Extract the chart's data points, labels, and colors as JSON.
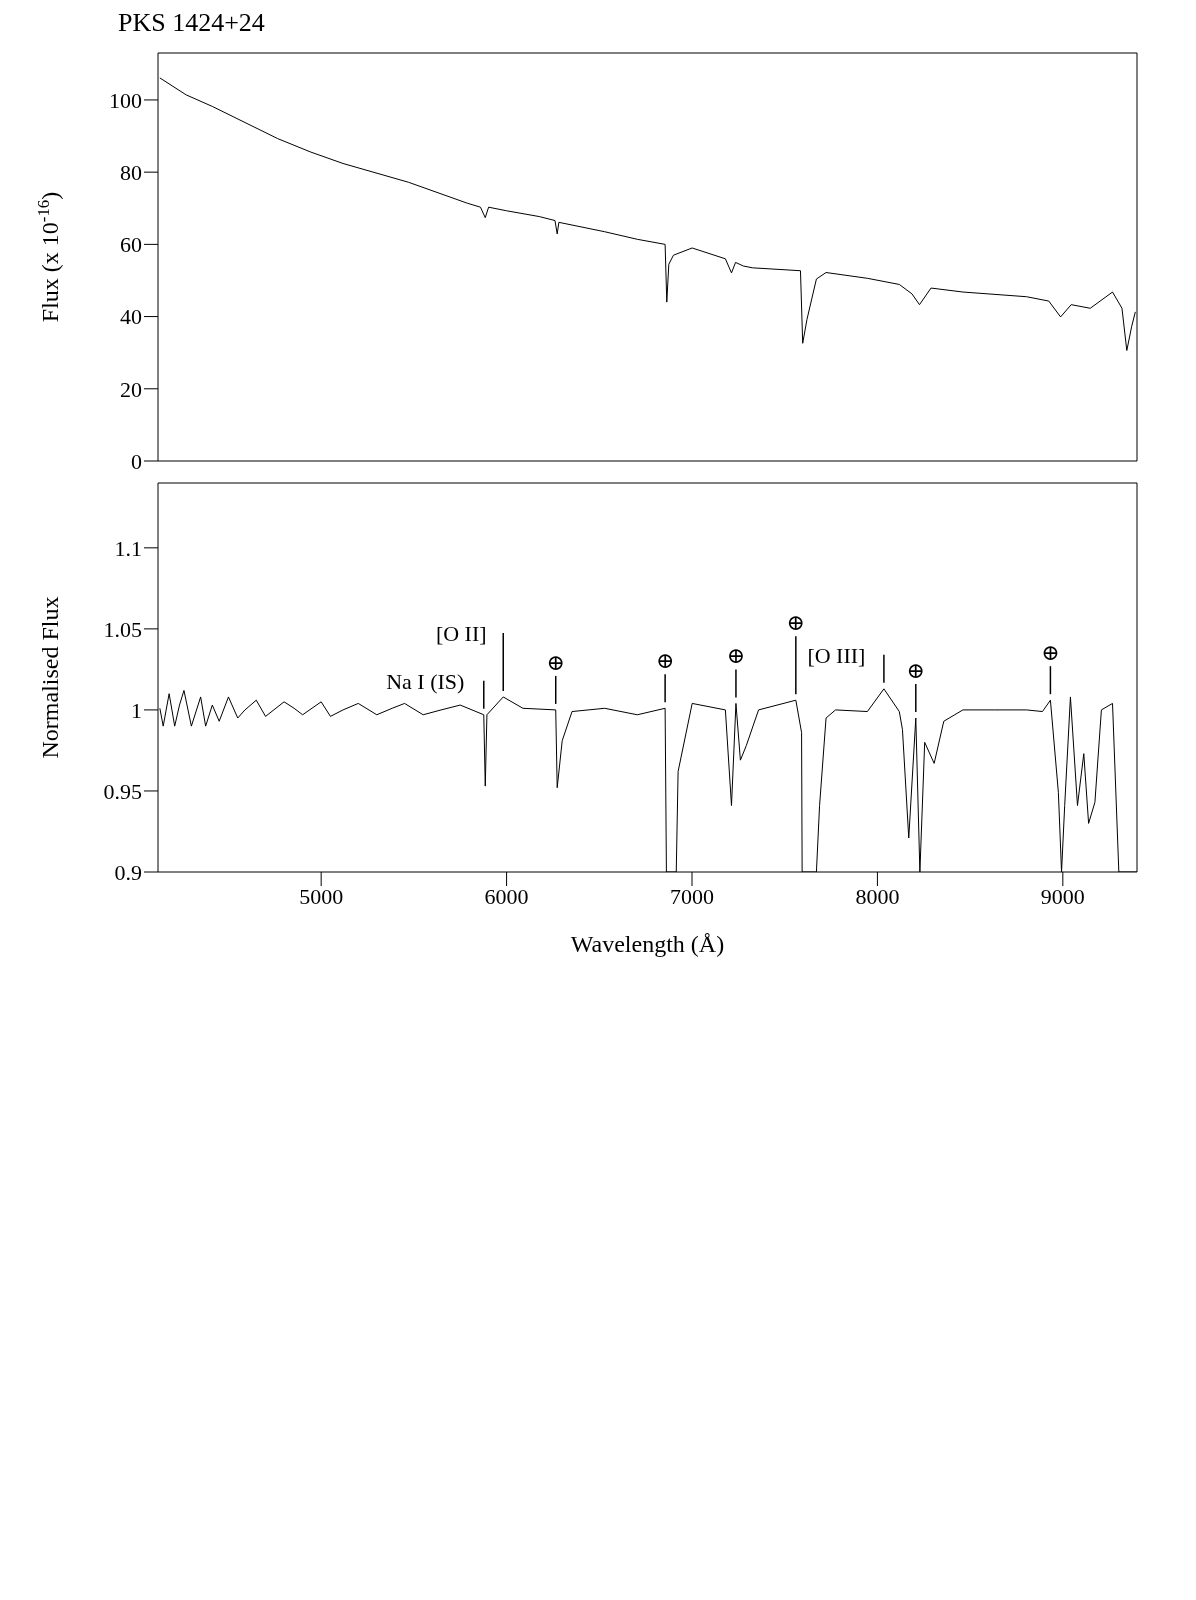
{
  "chart_data": [
    {
      "type": "line",
      "title": "PKS 1424+24",
      "ylabel": "Flux (x 10$^{-16}$)",
      "xlim": [
        4120,
        9400
      ],
      "xticks": [
        5000,
        6000,
        7000,
        8000,
        9000
      ],
      "ylim": [
        0,
        113
      ],
      "yticks": [
        0,
        20,
        40,
        60,
        80,
        100
      ],
      "tick_labels": "y",
      "series": [
        {
          "color": "#000000",
          "x": [
            4130,
            4272,
            4413,
            4765,
            4942,
            5118,
            5471,
            5788,
            5859,
            5885,
            5903,
            6000,
            6176,
            6261,
            6273,
            6282,
            6529,
            6705,
            6855,
            6864,
            6875,
            6900,
            7001,
            7180,
            7213,
            7235,
            7277,
            7327,
            7585,
            7597,
            7620,
            7671,
            7723,
            7946,
            8118,
            8186,
            8227,
            8289,
            8461,
            8804,
            8924,
            8988,
            9045,
            9148,
            9268,
            9319,
            9345,
            9371,
            9391
          ],
          "values": [
            106.1,
            101.4,
            98.2,
            89.3,
            85.6,
            82.4,
            77.2,
            71.4,
            70.3,
            67.4,
            70.3,
            69.3,
            67.7,
            66.6,
            62.9,
            66.1,
            63.5,
            61.4,
            60.0,
            44.0,
            54.5,
            57.0,
            59.0,
            56.0,
            52.1,
            55.0,
            54.0,
            53.5,
            52.7,
            32.6,
            39.2,
            50.4,
            52.2,
            50.6,
            48.9,
            46.3,
            43.3,
            47.9,
            46.8,
            45.5,
            44.3,
            39.9,
            43.3,
            42.3,
            46.8,
            42.3,
            30.6,
            37.2,
            41.3
          ]
        }
      ]
    },
    {
      "type": "line",
      "xlabel": "Wavelength (Å)",
      "ylabel": "Normalised Flux",
      "xlim": [
        4120,
        9400
      ],
      "xticks": [
        5000,
        6000,
        7000,
        8000,
        9000
      ],
      "ylim": [
        0.9,
        1.14
      ],
      "yticks": [
        0.9,
        0.95,
        1,
        1.05,
        1.1
      ],
      "series": [
        {
          "color": "#000000",
          "x": [
            4130,
            4148,
            4180,
            4210,
            4236,
            4260,
            4300,
            4350,
            4377,
            4413,
            4450,
            4500,
            4550,
            4589,
            4650,
            4700,
            4800,
            4854,
            4900,
            5000,
            5050,
            5118,
            5200,
            5300,
            5383,
            5450,
            5550,
            5647,
            5750,
            5877,
            5885,
            5894,
            5982,
            6088,
            6265,
            6273,
            6300,
            6353,
            6529,
            6705,
            6855,
            6862,
            6915,
            6925,
            7001,
            7180,
            7213,
            7237,
            7261,
            7293,
            7359,
            7560,
            7591,
            7594,
            7671,
            7688,
            7723,
            7774,
            7946,
            8035,
            8118,
            8135,
            8169,
            8207,
            8229,
            8255,
            8306,
            8358,
            8461,
            8633,
            8804,
            8890,
            8933,
            8976,
            8993,
            9010,
            9041,
            9079,
            9113,
            9139,
            9173,
            9208,
            9268,
            9302,
            9400
          ],
          "values": [
            1.001,
            0.99,
            1.01,
            0.99,
            1.003,
            1.012,
            0.99,
            1.008,
            0.99,
            1.003,
            0.993,
            1.008,
            0.995,
            1.0,
            1.006,
            0.996,
            1.005,
            1.001,
            0.997,
            1.005,
            0.996,
            1.0,
            1.004,
            0.997,
            1.001,
            1.004,
            0.997,
            1.0,
            1.003,
            0.997,
            0.953,
            0.997,
            1.008,
            1.001,
            1.0,
            0.952,
            0.981,
            0.999,
            1.001,
            0.997,
            1.001,
            0.9,
            0.9,
            0.962,
            1.004,
            1.0,
            0.941,
            1.004,
            0.969,
            0.978,
            1.0,
            1.006,
            0.986,
            0.9,
            0.9,
            0.941,
            0.995,
            1.0,
            0.999,
            1.013,
            0.999,
            0.988,
            0.921,
            0.995,
            0.9,
            0.98,
            0.967,
            0.993,
            1.0,
            1.0,
            1.0,
            0.999,
            1.006,
            0.949,
            0.9,
            0.941,
            1.008,
            0.941,
            0.973,
            0.93,
            0.943,
            1.0,
            1.004,
            0.9,
            0.9
          ]
        }
      ],
      "annotations": [
        {
          "text": "Na I (IS)",
          "x": 5877,
          "y": 0.997
        },
        {
          "text": "[O II]",
          "x": 5982,
          "y": 1.008
        },
        {
          "text": "[O III]",
          "x": 8035,
          "y": 1.013
        },
        {
          "text": "⊕",
          "x": 6265,
          "y": 1.0
        },
        {
          "text": "⊕",
          "x": 6855,
          "y": 1.001
        },
        {
          "text": "⊕",
          "x": 7237,
          "y": 1.004
        },
        {
          "text": "⊕",
          "x": 7560,
          "y": 1.006
        },
        {
          "text": "⊕",
          "x": 8207,
          "y": 0.995
        },
        {
          "text": "⊕",
          "x": 8933,
          "y": 1.006
        }
      ]
    }
  ]
}
